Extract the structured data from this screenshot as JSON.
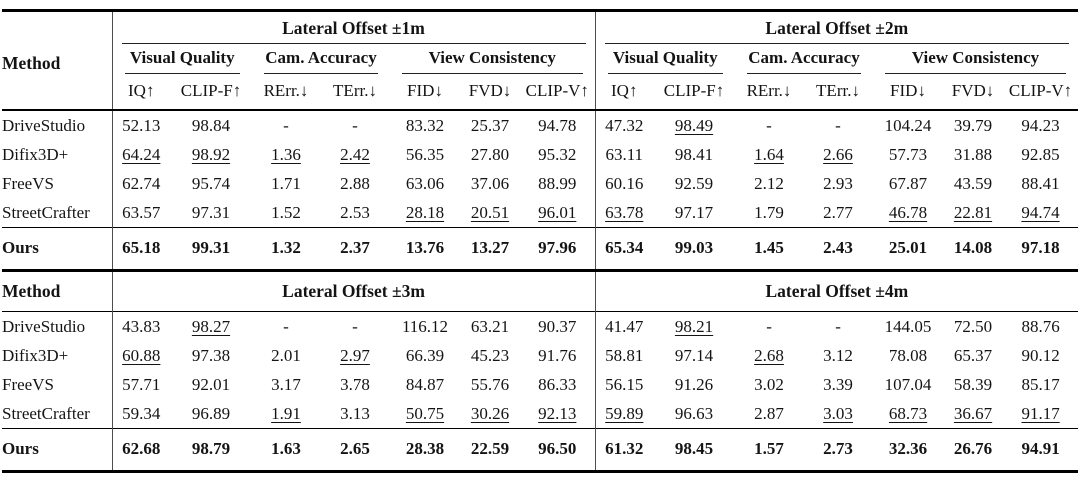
{
  "page": {
    "background": "#ffffff",
    "text_color": "#141414",
    "rule_color": "#000000",
    "vertical_rule_color": "#4d4d4d"
  },
  "metrics": [
    "IQ↑",
    "CLIP-F↑",
    "RErr.↓",
    "TErr.↓",
    "FID↓",
    "FVD↓",
    "CLIP-V↑"
  ],
  "subgroups": [
    {
      "label": "Visual Quality",
      "span": 2
    },
    {
      "label": "Cam. Accuracy",
      "span": 2
    },
    {
      "label": "View Consistency",
      "span": 3
    }
  ],
  "blocks": [
    {
      "method_label": "Method",
      "group_titles": [
        "Lateral Offset ±1m",
        "Lateral Offset ±2m"
      ],
      "show_subheaders": true,
      "rows": [
        {
          "method": "DriveStudio",
          "bold": false,
          "cells": [
            {
              "t": "52.13"
            },
            {
              "t": "98.84"
            },
            {
              "t": "-"
            },
            {
              "t": "-"
            },
            {
              "t": "83.32"
            },
            {
              "t": "25.37"
            },
            {
              "t": "94.78"
            },
            {
              "t": "47.32"
            },
            {
              "t": "98.49",
              "u": true
            },
            {
              "t": "-"
            },
            {
              "t": "-"
            },
            {
              "t": "104.24"
            },
            {
              "t": "39.79"
            },
            {
              "t": "94.23"
            }
          ]
        },
        {
          "method": "Difix3D+",
          "bold": false,
          "cells": [
            {
              "t": "64.24",
              "u": true
            },
            {
              "t": "98.92",
              "u": true
            },
            {
              "t": "1.36",
              "u": true
            },
            {
              "t": "2.42",
              "u": true
            },
            {
              "t": "56.35"
            },
            {
              "t": "27.80"
            },
            {
              "t": "95.32"
            },
            {
              "t": "63.11"
            },
            {
              "t": "98.41"
            },
            {
              "t": "1.64",
              "u": true
            },
            {
              "t": "2.66",
              "u": true
            },
            {
              "t": "57.73"
            },
            {
              "t": "31.88"
            },
            {
              "t": "92.85"
            }
          ]
        },
        {
          "method": "FreeVS",
          "bold": false,
          "cells": [
            {
              "t": "62.74"
            },
            {
              "t": "95.74"
            },
            {
              "t": "1.71"
            },
            {
              "t": "2.88"
            },
            {
              "t": "63.06"
            },
            {
              "t": "37.06"
            },
            {
              "t": "88.99"
            },
            {
              "t": "60.16"
            },
            {
              "t": "92.59"
            },
            {
              "t": "2.12"
            },
            {
              "t": "2.93"
            },
            {
              "t": "67.87"
            },
            {
              "t": "43.59"
            },
            {
              "t": "88.41"
            }
          ]
        },
        {
          "method": "StreetCrafter",
          "bold": false,
          "cells": [
            {
              "t": "63.57"
            },
            {
              "t": "97.31"
            },
            {
              "t": "1.52"
            },
            {
              "t": "2.53"
            },
            {
              "t": "28.18",
              "u": true
            },
            {
              "t": "20.51",
              "u": true
            },
            {
              "t": "96.01",
              "u": true
            },
            {
              "t": "63.78",
              "u": true
            },
            {
              "t": "97.17"
            },
            {
              "t": "1.79"
            },
            {
              "t": "2.77"
            },
            {
              "t": "46.78",
              "u": true
            },
            {
              "t": "22.81",
              "u": true
            },
            {
              "t": "94.74",
              "u": true
            }
          ]
        },
        {
          "method": "Ours",
          "bold": true,
          "cells": [
            {
              "t": "65.18"
            },
            {
              "t": "99.31"
            },
            {
              "t": "1.32"
            },
            {
              "t": "2.37"
            },
            {
              "t": "13.76"
            },
            {
              "t": "13.27"
            },
            {
              "t": "97.96"
            },
            {
              "t": "65.34"
            },
            {
              "t": "99.03"
            },
            {
              "t": "1.45"
            },
            {
              "t": "2.43"
            },
            {
              "t": "25.01"
            },
            {
              "t": "14.08"
            },
            {
              "t": "97.18"
            }
          ]
        }
      ]
    },
    {
      "method_label": "Method",
      "group_titles": [
        "Lateral Offset ±3m",
        "Lateral Offset ±4m"
      ],
      "show_subheaders": false,
      "rows": [
        {
          "method": "DriveStudio",
          "bold": false,
          "cells": [
            {
              "t": "43.83"
            },
            {
              "t": "98.27",
              "u": true
            },
            {
              "t": "-"
            },
            {
              "t": "-"
            },
            {
              "t": "116.12"
            },
            {
              "t": "63.21"
            },
            {
              "t": "90.37"
            },
            {
              "t": "41.47"
            },
            {
              "t": "98.21",
              "u": true
            },
            {
              "t": "-"
            },
            {
              "t": "-"
            },
            {
              "t": "144.05"
            },
            {
              "t": "72.50"
            },
            {
              "t": "88.76"
            }
          ]
        },
        {
          "method": "Difix3D+",
          "bold": false,
          "cells": [
            {
              "t": "60.88",
              "u": true
            },
            {
              "t": "97.38"
            },
            {
              "t": "2.01"
            },
            {
              "t": "2.97",
              "u": true
            },
            {
              "t": "66.39"
            },
            {
              "t": "45.23"
            },
            {
              "t": "91.76"
            },
            {
              "t": "58.81"
            },
            {
              "t": "97.14"
            },
            {
              "t": "2.68",
              "u": true
            },
            {
              "t": "3.12"
            },
            {
              "t": "78.08"
            },
            {
              "t": "65.37"
            },
            {
              "t": "90.12"
            }
          ]
        },
        {
          "method": "FreeVS",
          "bold": false,
          "cells": [
            {
              "t": "57.71"
            },
            {
              "t": "92.01"
            },
            {
              "t": "3.17"
            },
            {
              "t": "3.78"
            },
            {
              "t": "84.87"
            },
            {
              "t": "55.76"
            },
            {
              "t": "86.33"
            },
            {
              "t": "56.15"
            },
            {
              "t": "91.26"
            },
            {
              "t": "3.02"
            },
            {
              "t": "3.39"
            },
            {
              "t": "107.04"
            },
            {
              "t": "58.39"
            },
            {
              "t": "85.17"
            }
          ]
        },
        {
          "method": "StreetCrafter",
          "bold": false,
          "cells": [
            {
              "t": "59.34"
            },
            {
              "t": "96.89"
            },
            {
              "t": "1.91",
              "u": true
            },
            {
              "t": "3.13"
            },
            {
              "t": "50.75",
              "u": true
            },
            {
              "t": "30.26",
              "u": true
            },
            {
              "t": "92.13",
              "u": true
            },
            {
              "t": "59.89",
              "u": true
            },
            {
              "t": "96.63"
            },
            {
              "t": "2.87"
            },
            {
              "t": "3.03",
              "u": true
            },
            {
              "t": "68.73",
              "u": true
            },
            {
              "t": "36.67",
              "u": true
            },
            {
              "t": "91.17",
              "u": true
            }
          ]
        },
        {
          "method": "Ours",
          "bold": true,
          "cells": [
            {
              "t": "62.68"
            },
            {
              "t": "98.79"
            },
            {
              "t": "1.63"
            },
            {
              "t": "2.65"
            },
            {
              "t": "28.38"
            },
            {
              "t": "22.59"
            },
            {
              "t": "96.50"
            },
            {
              "t": "61.32"
            },
            {
              "t": "98.45"
            },
            {
              "t": "1.57"
            },
            {
              "t": "2.73"
            },
            {
              "t": "32.36"
            },
            {
              "t": "26.76"
            },
            {
              "t": "94.91"
            }
          ]
        }
      ]
    }
  ]
}
